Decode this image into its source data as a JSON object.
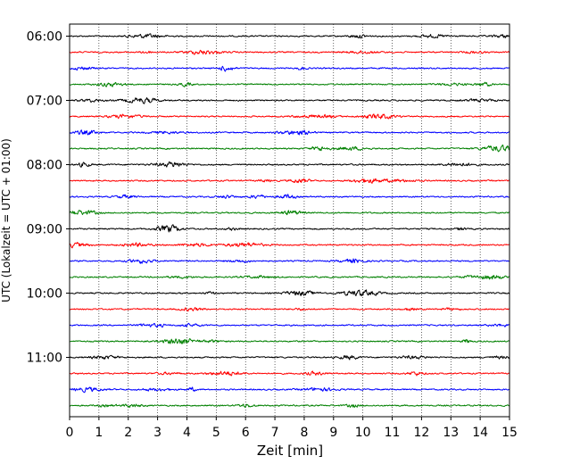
{
  "chart_data": {
    "type": "line",
    "title": "",
    "xlabel": "Zeit  [min]",
    "ylabel": "UTC (Lokalzeit = UTC + 01:00)",
    "xlim": [
      0,
      15
    ],
    "x_ticks": [
      0,
      1,
      2,
      3,
      4,
      5,
      6,
      7,
      8,
      9,
      10,
      11,
      12,
      13,
      14,
      15
    ],
    "y_tick_labels": [
      "06:00",
      "07:00",
      "08:00",
      "09:00",
      "10:00",
      "11:00"
    ],
    "grid": "vertical dotted lines at each minute",
    "trace_colors_cycle": [
      "#000000",
      "#ff0000",
      "#0000ff",
      "#008000"
    ],
    "series": [
      {
        "start": "06:00",
        "color": "#000000"
      },
      {
        "start": "06:15",
        "color": "#ff0000"
      },
      {
        "start": "06:30",
        "color": "#0000ff"
      },
      {
        "start": "06:45",
        "color": "#008000"
      },
      {
        "start": "07:00",
        "color": "#000000"
      },
      {
        "start": "07:15",
        "color": "#ff0000"
      },
      {
        "start": "07:30",
        "color": "#0000ff"
      },
      {
        "start": "07:45",
        "color": "#008000"
      },
      {
        "start": "08:00",
        "color": "#000000"
      },
      {
        "start": "08:15",
        "color": "#ff0000"
      },
      {
        "start": "08:30",
        "color": "#0000ff"
      },
      {
        "start": "08:45",
        "color": "#008000"
      },
      {
        "start": "09:00",
        "color": "#000000"
      },
      {
        "start": "09:15",
        "color": "#ff0000"
      },
      {
        "start": "09:30",
        "color": "#0000ff"
      },
      {
        "start": "09:45",
        "color": "#008000"
      },
      {
        "start": "10:00",
        "color": "#000000"
      },
      {
        "start": "10:15",
        "color": "#ff0000"
      },
      {
        "start": "10:30",
        "color": "#0000ff"
      },
      {
        "start": "10:45",
        "color": "#008000"
      },
      {
        "start": "11:00",
        "color": "#000000"
      },
      {
        "start": "11:15",
        "color": "#ff0000"
      },
      {
        "start": "11:30",
        "color": "#0000ff"
      },
      {
        "start": "11:45",
        "color": "#008000"
      }
    ]
  }
}
